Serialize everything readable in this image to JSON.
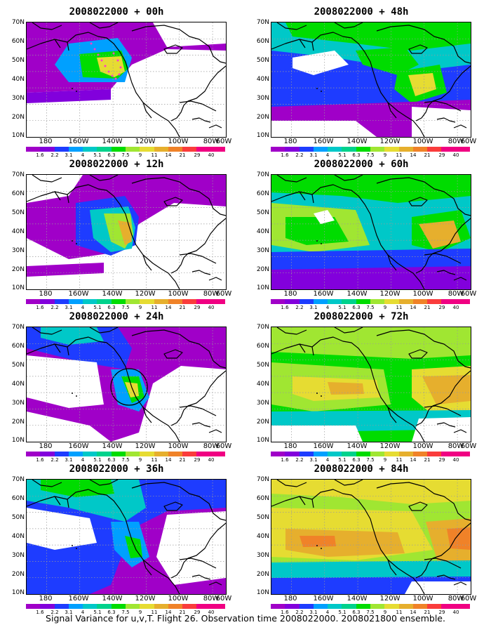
{
  "caption": "Signal Variance for u,v,T. Flight 26. Observation time 2008022000. 2008021800 ensemble.",
  "y_tick_labels": [
    "70N",
    "60N",
    "50N",
    "40N",
    "30N",
    "20N",
    "10N"
  ],
  "x_tick_labels": [
    "180",
    "160W",
    "140W",
    "120W",
    "100W",
    "80W",
    "60W"
  ],
  "colorbar": {
    "labels": [
      "1.6",
      "2.2",
      "3.1",
      "4",
      "5.1",
      "6.3",
      "7.5",
      "9",
      "11",
      "14",
      "21",
      "29",
      "40"
    ],
    "colors": [
      "#a000c8",
      "#8200dc",
      "#1e3cff",
      "#00a0ff",
      "#00c8c8",
      "#00d28c",
      "#00dc00",
      "#a0e632",
      "#e6dc32",
      "#e6af2d",
      "#f08228",
      "#fa3c3c",
      "#f00082"
    ]
  },
  "panels": [
    {
      "title": "2008022000 + 00h"
    },
    {
      "title": "2008022000 + 48h"
    },
    {
      "title": "2008022000 + 12h"
    },
    {
      "title": "2008022000 + 60h"
    },
    {
      "title": "2008022000 + 24h"
    },
    {
      "title": "2008022000 + 72h"
    },
    {
      "title": "2008022000 + 36h"
    },
    {
      "title": "2008022000 + 84h"
    }
  ]
}
